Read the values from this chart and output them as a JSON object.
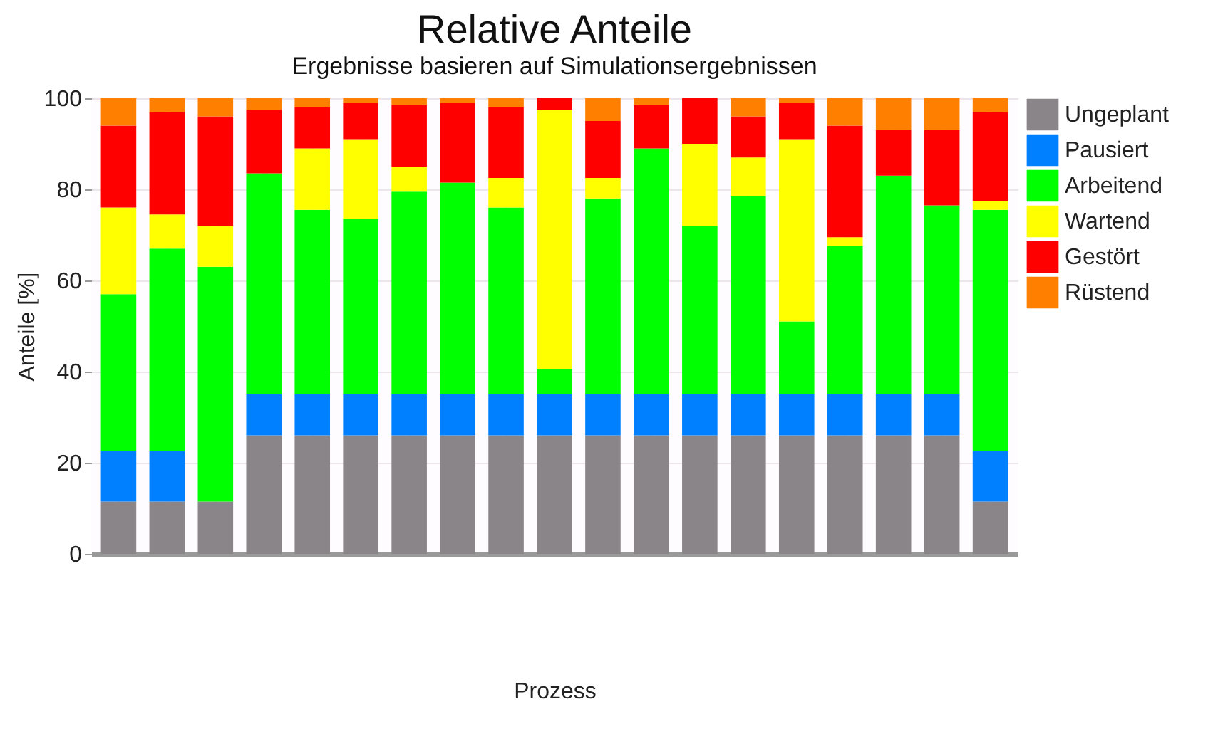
{
  "chart_data": {
    "type": "bar",
    "title": "Relative Anteile",
    "subtitle": "Ergebnisse basieren auf Simulationsergebnissen",
    "xlabel": "Prozess",
    "ylabel": "Anteile [%]",
    "categories": [
      null,
      null,
      null,
      null,
      null,
      null,
      null,
      null,
      null,
      null,
      null,
      null,
      null,
      null,
      null,
      null,
      null,
      null,
      null
    ],
    "stacked": true,
    "ylim": [
      0,
      100
    ],
    "yticks": [
      0,
      20,
      40,
      60,
      80,
      100
    ],
    "grid": true,
    "legend": "top right",
    "tick_labels": "y",
    "series": [
      {
        "name": "Ungeplant",
        "color": "#8a8589",
        "values": [
          11.5,
          11.5,
          11.5,
          26,
          26,
          26,
          26,
          26,
          26,
          26,
          26,
          26,
          26,
          26,
          26,
          26,
          26,
          26,
          11.5
        ]
      },
      {
        "name": "Pausiert",
        "color": "#0080ff",
        "values": [
          11,
          11,
          0,
          9,
          9,
          9,
          9,
          9,
          9,
          9,
          9,
          9,
          9,
          9,
          9,
          9,
          9,
          9,
          11
        ]
      },
      {
        "name": "Arbeitend",
        "color": "#00ff00",
        "values": [
          34.5,
          44.5,
          51.5,
          48.5,
          40.5,
          38.5,
          44.5,
          46.5,
          41,
          5.5,
          43,
          54,
          37,
          43.5,
          16,
          32.5,
          48,
          41.5,
          53
        ]
      },
      {
        "name": "Wartend",
        "color": "#ffff00",
        "values": [
          19,
          7.5,
          9,
          0,
          13.5,
          17.5,
          5.5,
          0,
          6.5,
          57,
          4.5,
          0,
          18,
          8.5,
          40,
          2,
          0,
          0,
          2
        ]
      },
      {
        "name": "Gestört",
        "color": "#ff0000",
        "values": [
          18,
          22.5,
          24,
          14,
          9,
          8,
          13.5,
          17.5,
          15.5,
          2.5,
          12.5,
          9.5,
          10,
          9,
          8,
          24.5,
          10,
          16.5,
          19.5
        ]
      },
      {
        "name": "Rüstend",
        "color": "#ff8000",
        "values": [
          6,
          3,
          4,
          2.5,
          2,
          1,
          1.5,
          1,
          2,
          0,
          5,
          1.5,
          0,
          4,
          1,
          6,
          7,
          7,
          3
        ]
      }
    ]
  }
}
